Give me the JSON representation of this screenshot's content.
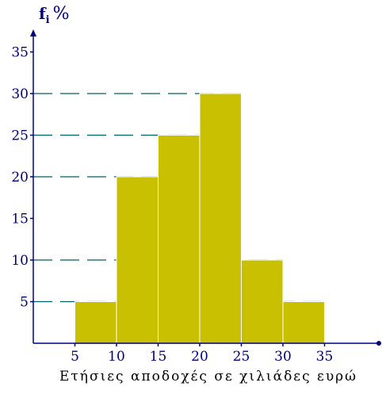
{
  "chart_data": {
    "type": "bar",
    "title": "",
    "ylabel": "f",
    "ylabel_subscript": "i",
    "ylabel_unit": "%",
    "xlabel": "Ετήσιες αποδοχές σε χιλιάδες ευρώ",
    "x_ticks": [
      "5",
      "10",
      "15",
      "20",
      "25",
      "30",
      "35"
    ],
    "y_ticks": [
      "5",
      "10",
      "15",
      "20",
      "25",
      "30",
      "35"
    ],
    "xlim": [
      0,
      41
    ],
    "ylim": [
      0,
      37.5
    ],
    "bins": [
      {
        "from": 5,
        "to": 10,
        "value": 5
      },
      {
        "from": 10,
        "to": 15,
        "value": 20
      },
      {
        "from": 15,
        "to": 20,
        "value": 25
      },
      {
        "from": 20,
        "to": 25,
        "value": 30
      },
      {
        "from": 25,
        "to": 30,
        "value": 10
      },
      {
        "from": 30,
        "to": 35,
        "value": 5
      }
    ],
    "guide_lines_at": [
      5,
      10,
      20,
      25,
      30
    ],
    "colors": {
      "bar_fill": "#c8c000",
      "bar_edge": "#ffffff",
      "axis": "#000080",
      "guide": "#006060",
      "tick_label": "#000080"
    },
    "grid": false,
    "legend": "none"
  }
}
